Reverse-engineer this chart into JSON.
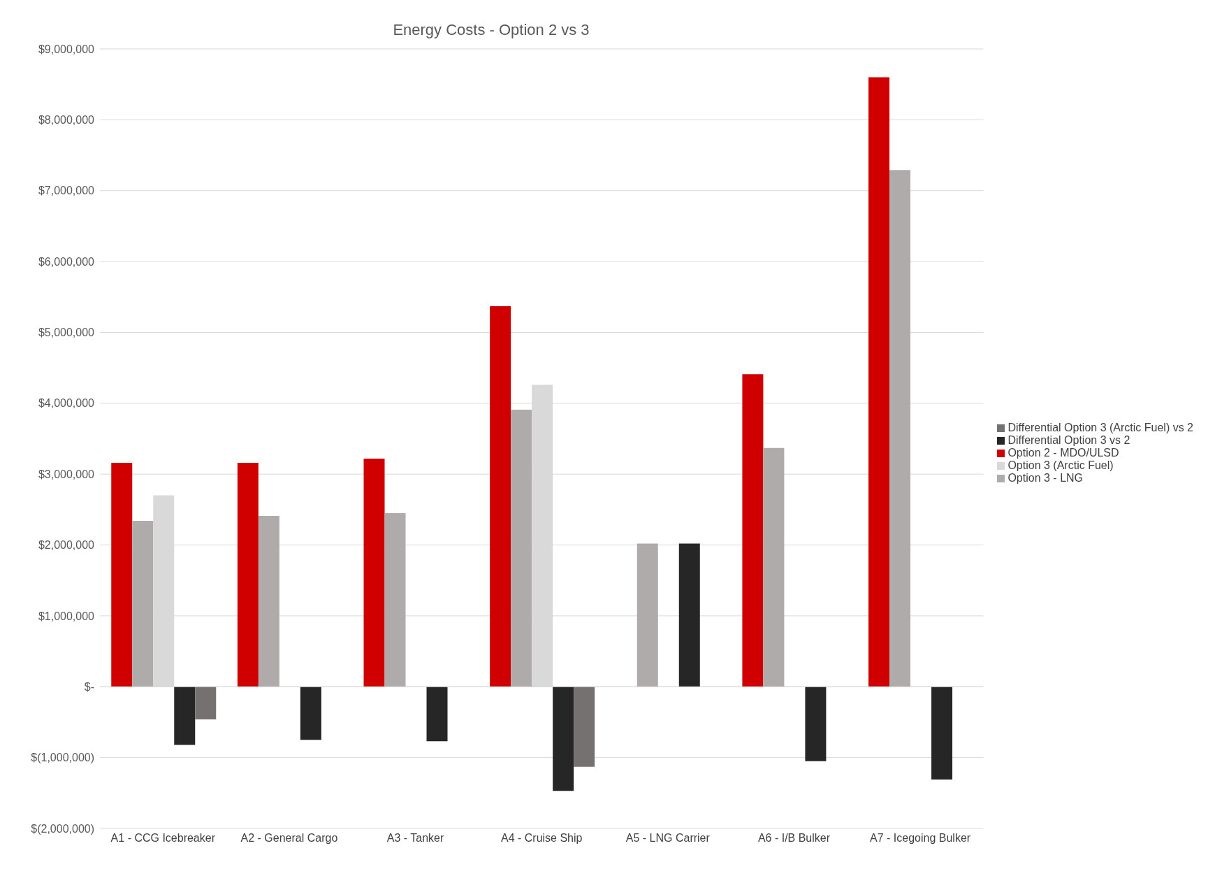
{
  "chart_data": {
    "type": "bar",
    "title": "Energy Costs - Option 2 vs 3",
    "categories": [
      "A1 - CCG Icebreaker",
      "A2 - General Cargo",
      "A3 - Tanker",
      "A4 - Cruise Ship",
      "A5 - LNG Carrier",
      "A6 - I/B Bulker",
      "A7 - Icegoing Bulker"
    ],
    "series": [
      {
        "name": "Option 2 - MDO/ULSD",
        "color": "#d00000",
        "values": [
          3160000,
          3160000,
          3220000,
          5370000,
          null,
          4410000,
          8600000
        ]
      },
      {
        "name": "Option 3 - LNG",
        "color": "#afabab",
        "values": [
          2340000,
          2410000,
          2450000,
          3910000,
          2020000,
          3370000,
          7290000
        ]
      },
      {
        "name": "Option 3 (Arctic Fuel)",
        "color": "#d9d9d9",
        "values": [
          2700000,
          null,
          null,
          4260000,
          null,
          null,
          null
        ]
      },
      {
        "name": "Differential Option 3 vs 2",
        "color": "#262626",
        "values": [
          -820000,
          -750000,
          -770000,
          -1470000,
          2020000,
          -1050000,
          -1310000
        ]
      },
      {
        "name": "Differential Option 3 (Arctic Fuel) vs 2",
        "color": "#767171",
        "values": [
          -460000,
          null,
          null,
          -1130000,
          null,
          null,
          null
        ]
      }
    ],
    "ylim": [
      -2000000,
      9000000
    ],
    "yticks": [
      {
        "value": -2000000,
        "label": "$(2,000,000)"
      },
      {
        "value": -1000000,
        "label": "$(1,000,000)"
      },
      {
        "value": 0,
        "label": "$-"
      },
      {
        "value": 1000000,
        "label": "$1,000,000"
      },
      {
        "value": 2000000,
        "label": "$2,000,000"
      },
      {
        "value": 3000000,
        "label": "$3,000,000"
      },
      {
        "value": 4000000,
        "label": "$4,000,000"
      },
      {
        "value": 5000000,
        "label": "$5,000,000"
      },
      {
        "value": 6000000,
        "label": "$6,000,000"
      },
      {
        "value": 7000000,
        "label": "$7,000,000"
      },
      {
        "value": 8000000,
        "label": "$8,000,000"
      },
      {
        "value": 9000000,
        "label": "$9,000,000"
      }
    ],
    "grid": "y",
    "legend": "right"
  }
}
